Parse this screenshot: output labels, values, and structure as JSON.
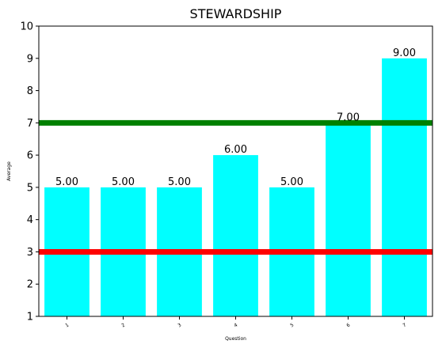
{
  "chart_data": {
    "type": "bar",
    "title": "STEWARDSHIP",
    "xlabel": "Question",
    "ylabel": "Average",
    "categories": [
      "1",
      "2",
      "3",
      "4",
      "5",
      "6",
      "7"
    ],
    "values": [
      5,
      5,
      5,
      6,
      5,
      7,
      9
    ],
    "value_labels": [
      "5.00",
      "5.00",
      "5.00",
      "6.00",
      "5.00",
      "7.00",
      "9.00"
    ],
    "ylim": [
      1,
      10
    ],
    "yticks": [
      "1",
      "2",
      "3",
      "4",
      "5",
      "6",
      "7",
      "8",
      "9",
      "10"
    ],
    "bar_color": "#00ffff",
    "reference_lines": [
      {
        "y": 7,
        "color": "#008000"
      },
      {
        "y": 3,
        "color": "#ff0000"
      }
    ],
    "grid": false,
    "legend": "none"
  }
}
